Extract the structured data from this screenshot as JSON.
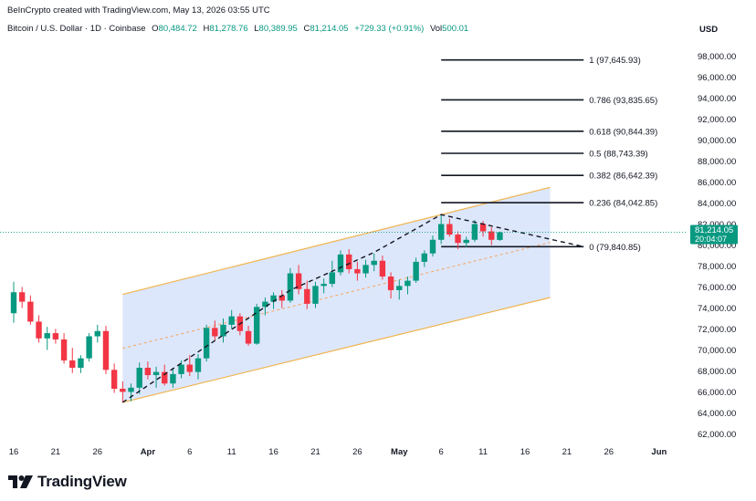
{
  "header": {
    "credit": "BeInCrypto created with TradingView.com, May 13, 2026 03:55 UTC"
  },
  "symbol": {
    "name": "Bitcoin / U.S. Dollar · 1D · Coinbase",
    "open_label": "O",
    "open": "80,484.72",
    "high_label": "H",
    "high": "81,278.76",
    "low_label": "L",
    "low": "80,389.95",
    "close_label": "C",
    "close": "81,214.05",
    "change": "+729.33 (+0.91%)",
    "volume_label": "Vol",
    "volume": "500.01"
  },
  "currency": "USD",
  "price_tag": {
    "price": "81,214.05",
    "countdown": "20:04:07"
  },
  "brand": "TradingView",
  "colors": {
    "up": "#089981",
    "down": "#f23645",
    "channel_fill": "#dbe6fb",
    "channel_edge": "#f0b44c",
    "channel_mid": "#f7a35c",
    "dashed_path": "#131722",
    "fib_line": "#131722",
    "price_line": "#089981",
    "axis_text": "#131722",
    "tag_bg": "#089981"
  },
  "chart_data": {
    "type": "candlestick",
    "y_axis": {
      "range": [
        61000,
        100000
      ],
      "ticks": [
        62000,
        64000,
        66000,
        68000,
        70000,
        72000,
        74000,
        76000,
        78000,
        80000,
        82000,
        84000,
        86000,
        88000,
        90000,
        92000,
        94000,
        96000,
        98000
      ],
      "tick_labels": [
        "62,000.00",
        "64,000.00",
        "66,000.00",
        "68,000.00",
        "70,000.00",
        "72,000.00",
        "74,000.00",
        "76,000.00",
        "78,000.00",
        "80,000.00",
        "82,000.00",
        "84,000.00",
        "86,000.00",
        "88,000.00",
        "90,000.00",
        "92,000.00",
        "94,000.00",
        "96,000.00",
        "98,000.00"
      ]
    },
    "x_axis": {
      "ticks": [
        {
          "date": "2026-03-16",
          "label": "16",
          "bold": false
        },
        {
          "date": "2026-03-21",
          "label": "21",
          "bold": false
        },
        {
          "date": "2026-03-26",
          "label": "26",
          "bold": false
        },
        {
          "date": "2026-04-01",
          "label": "Apr",
          "bold": true
        },
        {
          "date": "2026-04-06",
          "label": "6",
          "bold": false
        },
        {
          "date": "2026-04-11",
          "label": "11",
          "bold": false
        },
        {
          "date": "2026-04-16",
          "label": "16",
          "bold": false
        },
        {
          "date": "2026-04-21",
          "label": "21",
          "bold": false
        },
        {
          "date": "2026-04-26",
          "label": "26",
          "bold": false
        },
        {
          "date": "2026-05-01",
          "label": "May",
          "bold": true
        },
        {
          "date": "2026-05-06",
          "label": "6",
          "bold": false
        },
        {
          "date": "2026-05-11",
          "label": "11",
          "bold": false
        },
        {
          "date": "2026-05-16",
          "label": "16",
          "bold": false
        },
        {
          "date": "2026-05-21",
          "label": "21",
          "bold": false
        },
        {
          "date": "2026-05-26",
          "label": "26",
          "bold": false
        },
        {
          "date": "2026-06-01",
          "label": "Jun",
          "bold": true
        }
      ]
    },
    "candles": [
      {
        "date": "2026-03-16",
        "o": 73500,
        "h": 76500,
        "l": 72600,
        "c": 75500
      },
      {
        "date": "2026-03-17",
        "o": 75500,
        "h": 76000,
        "l": 74000,
        "c": 74600
      },
      {
        "date": "2026-03-18",
        "o": 74600,
        "h": 75200,
        "l": 72400,
        "c": 72700
      },
      {
        "date": "2026-03-19",
        "o": 72700,
        "h": 73300,
        "l": 70700,
        "c": 71100
      },
      {
        "date": "2026-03-20",
        "o": 71100,
        "h": 72200,
        "l": 70000,
        "c": 71600
      },
      {
        "date": "2026-03-21",
        "o": 71600,
        "h": 72000,
        "l": 70600,
        "c": 71000
      },
      {
        "date": "2026-03-22",
        "o": 71000,
        "h": 71600,
        "l": 68700,
        "c": 69000
      },
      {
        "date": "2026-03-23",
        "o": 69000,
        "h": 70200,
        "l": 67800,
        "c": 68300
      },
      {
        "date": "2026-03-24",
        "o": 68300,
        "h": 69500,
        "l": 67800,
        "c": 69200
      },
      {
        "date": "2026-03-25",
        "o": 69200,
        "h": 71600,
        "l": 68900,
        "c": 71300
      },
      {
        "date": "2026-03-26",
        "o": 71300,
        "h": 72400,
        "l": 70700,
        "c": 71800
      },
      {
        "date": "2026-03-27",
        "o": 71800,
        "h": 72300,
        "l": 67700,
        "c": 68100
      },
      {
        "date": "2026-03-28",
        "o": 68100,
        "h": 68700,
        "l": 65900,
        "c": 66300
      },
      {
        "date": "2026-03-29",
        "o": 66300,
        "h": 67000,
        "l": 65000,
        "c": 66000
      },
      {
        "date": "2026-03-30",
        "o": 66000,
        "h": 66800,
        "l": 65100,
        "c": 66400
      },
      {
        "date": "2026-03-31",
        "o": 66400,
        "h": 68800,
        "l": 65800,
        "c": 68300
      },
      {
        "date": "2026-04-01",
        "o": 68300,
        "h": 68900,
        "l": 67200,
        "c": 67600
      },
      {
        "date": "2026-04-02",
        "o": 67600,
        "h": 68400,
        "l": 66400,
        "c": 67900
      },
      {
        "date": "2026-04-03",
        "o": 67900,
        "h": 68600,
        "l": 66600,
        "c": 66800
      },
      {
        "date": "2026-04-04",
        "o": 66800,
        "h": 68300,
        "l": 66400,
        "c": 67700
      },
      {
        "date": "2026-04-05",
        "o": 67700,
        "h": 69000,
        "l": 67300,
        "c": 68600
      },
      {
        "date": "2026-04-06",
        "o": 68600,
        "h": 69500,
        "l": 67500,
        "c": 67900
      },
      {
        "date": "2026-04-07",
        "o": 67900,
        "h": 69600,
        "l": 67200,
        "c": 69200
      },
      {
        "date": "2026-04-08",
        "o": 69200,
        "h": 72400,
        "l": 68900,
        "c": 72100
      },
      {
        "date": "2026-04-09",
        "o": 72100,
        "h": 72800,
        "l": 70900,
        "c": 71300
      },
      {
        "date": "2026-04-10",
        "o": 71300,
        "h": 73000,
        "l": 70700,
        "c": 72400
      },
      {
        "date": "2026-04-11",
        "o": 72400,
        "h": 73800,
        "l": 72000,
        "c": 73200
      },
      {
        "date": "2026-04-12",
        "o": 73200,
        "h": 73500,
        "l": 71400,
        "c": 71800
      },
      {
        "date": "2026-04-13",
        "o": 71800,
        "h": 72300,
        "l": 70400,
        "c": 70600
      },
      {
        "date": "2026-04-14",
        "o": 70600,
        "h": 74400,
        "l": 70500,
        "c": 74100
      },
      {
        "date": "2026-04-15",
        "o": 74100,
        "h": 75000,
        "l": 73300,
        "c": 74600
      },
      {
        "date": "2026-04-16",
        "o": 74600,
        "h": 75500,
        "l": 73900,
        "c": 75200
      },
      {
        "date": "2026-04-17",
        "o": 75200,
        "h": 75700,
        "l": 74000,
        "c": 74700
      },
      {
        "date": "2026-04-18",
        "o": 74700,
        "h": 77800,
        "l": 74500,
        "c": 77300
      },
      {
        "date": "2026-04-19",
        "o": 77300,
        "h": 78100,
        "l": 75300,
        "c": 75800
      },
      {
        "date": "2026-04-20",
        "o": 75800,
        "h": 76600,
        "l": 73900,
        "c": 74400
      },
      {
        "date": "2026-04-21",
        "o": 74400,
        "h": 76500,
        "l": 74000,
        "c": 76100
      },
      {
        "date": "2026-04-22",
        "o": 76100,
        "h": 76800,
        "l": 75400,
        "c": 76300
      },
      {
        "date": "2026-04-23",
        "o": 76300,
        "h": 78500,
        "l": 76000,
        "c": 77400
      },
      {
        "date": "2026-04-24",
        "o": 77400,
        "h": 79500,
        "l": 77100,
        "c": 79100
      },
      {
        "date": "2026-04-25",
        "o": 79100,
        "h": 79600,
        "l": 77300,
        "c": 77700
      },
      {
        "date": "2026-04-26",
        "o": 77700,
        "h": 78400,
        "l": 76600,
        "c": 77300
      },
      {
        "date": "2026-04-27",
        "o": 77300,
        "h": 78600,
        "l": 76900,
        "c": 78100
      },
      {
        "date": "2026-04-28",
        "o": 78100,
        "h": 79200,
        "l": 77500,
        "c": 78500
      },
      {
        "date": "2026-04-29",
        "o": 78500,
        "h": 79000,
        "l": 76700,
        "c": 77000
      },
      {
        "date": "2026-04-30",
        "o": 77000,
        "h": 77400,
        "l": 74900,
        "c": 75700
      },
      {
        "date": "2026-05-01",
        "o": 75700,
        "h": 76700,
        "l": 74800,
        "c": 76100
      },
      {
        "date": "2026-05-02",
        "o": 76100,
        "h": 77000,
        "l": 75300,
        "c": 76600
      },
      {
        "date": "2026-05-03",
        "o": 76600,
        "h": 78800,
        "l": 76400,
        "c": 78400
      },
      {
        "date": "2026-05-04",
        "o": 78400,
        "h": 79500,
        "l": 77900,
        "c": 79200
      },
      {
        "date": "2026-05-05",
        "o": 79200,
        "h": 80900,
        "l": 78900,
        "c": 80500
      },
      {
        "date": "2026-05-06",
        "o": 80500,
        "h": 82900,
        "l": 80100,
        "c": 82000
      },
      {
        "date": "2026-05-07",
        "o": 82000,
        "h": 82500,
        "l": 80800,
        "c": 81000
      },
      {
        "date": "2026-05-08",
        "o": 81000,
        "h": 81300,
        "l": 79600,
        "c": 80200
      },
      {
        "date": "2026-05-09",
        "o": 80200,
        "h": 80800,
        "l": 79800,
        "c": 80500
      },
      {
        "date": "2026-05-10",
        "o": 80500,
        "h": 82400,
        "l": 80300,
        "c": 82000
      },
      {
        "date": "2026-05-11",
        "o": 82000,
        "h": 82300,
        "l": 80800,
        "c": 81300
      },
      {
        "date": "2026-05-12",
        "o": 81300,
        "h": 81700,
        "l": 80000,
        "c": 80500
      },
      {
        "date": "2026-05-13",
        "o": 80485,
        "h": 81279,
        "l": 80390,
        "c": 81214
      }
    ],
    "channel": {
      "upper": [
        {
          "date": "2026-03-29",
          "price": 75300
        },
        {
          "date": "2026-05-19",
          "price": 85500
        }
      ],
      "lower": [
        {
          "date": "2026-03-29",
          "price": 65000
        },
        {
          "date": "2026-05-19",
          "price": 75000
        }
      ],
      "mid": [
        {
          "date": "2026-03-29",
          "price": 70150
        },
        {
          "date": "2026-05-19",
          "price": 80250
        }
      ]
    },
    "dashed_path": [
      {
        "date": "2026-03-29",
        "price": 65000
      },
      {
        "date": "2026-04-18",
        "price": 75700
      },
      {
        "date": "2026-04-28",
        "price": 79300
      },
      {
        "date": "2026-05-06",
        "price": 82900
      },
      {
        "date": "2026-05-23",
        "price": 79840.85
      }
    ],
    "fib_levels": [
      {
        "ratio": "1",
        "price": 97645.93,
        "label": "1 (97,645.93)"
      },
      {
        "ratio": "0.786",
        "price": 93835.65,
        "label": "0.786 (93,835.65)"
      },
      {
        "ratio": "0.618",
        "price": 90844.39,
        "label": "0.618 (90,844.39)"
      },
      {
        "ratio": "0.5",
        "price": 88743.39,
        "label": "0.5 (88,743.39)"
      },
      {
        "ratio": "0.382",
        "price": 86642.39,
        "label": "0.382 (86,642.39)"
      },
      {
        "ratio": "0.236",
        "price": 84042.85,
        "label": "0.236 (84,042.85)"
      },
      {
        "ratio": "0",
        "price": 79840.85,
        "label": "0 (79,840.85)"
      }
    ],
    "fib_range": {
      "from": "2026-05-06",
      "to": "2026-05-23"
    },
    "last_price": 81214.05
  }
}
